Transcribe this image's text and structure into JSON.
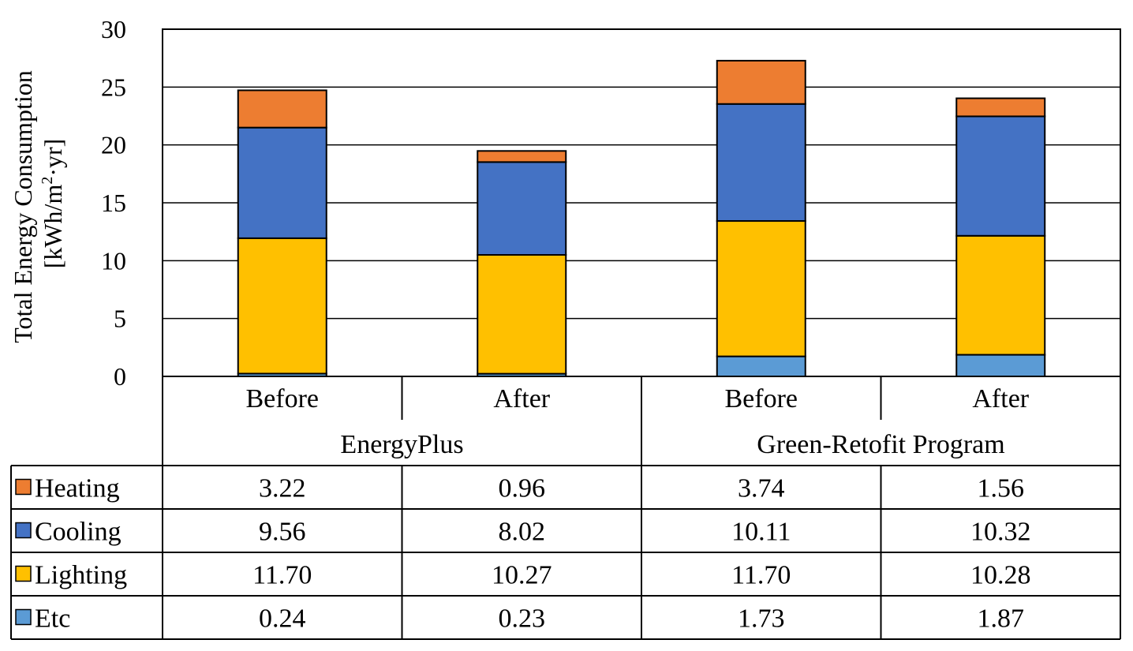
{
  "chart_data": {
    "type": "bar",
    "stacked": true,
    "title": "",
    "ylabel_line1": "Total Energy Consumption",
    "ylabel_unit_pre": "[kWh/m",
    "ylabel_unit_sup": "2",
    "ylabel_unit_post": "·yr]",
    "ylim": [
      0,
      30
    ],
    "yticks": [
      0,
      5,
      10,
      15,
      20,
      25,
      30
    ],
    "grid": true,
    "categories": [
      "Before",
      "After",
      "Before",
      "After"
    ],
    "groups": [
      "EnergyPlus",
      "Green-Retofit Program"
    ],
    "series": [
      {
        "name": "Etc",
        "color": "#5B9BD5",
        "values": [
          0.24,
          0.23,
          1.73,
          1.87
        ],
        "labels": [
          "0.24",
          "0.23",
          "1.73",
          "1.87"
        ]
      },
      {
        "name": "Lighting",
        "color": "#FFC000",
        "values": [
          11.7,
          10.27,
          11.7,
          10.28
        ],
        "labels": [
          "11.70",
          "10.27",
          "11.70",
          "10.28"
        ]
      },
      {
        "name": "Cooling",
        "color": "#4472C4",
        "values": [
          9.56,
          8.02,
          10.11,
          10.32
        ],
        "labels": [
          "9.56",
          "8.02",
          "10.11",
          "10.32"
        ]
      },
      {
        "name": "Heating",
        "color": "#ED7D31",
        "values": [
          3.22,
          0.96,
          3.74,
          1.56
        ],
        "labels": [
          "3.22",
          "0.96",
          "3.74",
          "1.56"
        ]
      }
    ],
    "table_row_order": [
      "Heating",
      "Cooling",
      "Lighting",
      "Etc"
    ]
  }
}
